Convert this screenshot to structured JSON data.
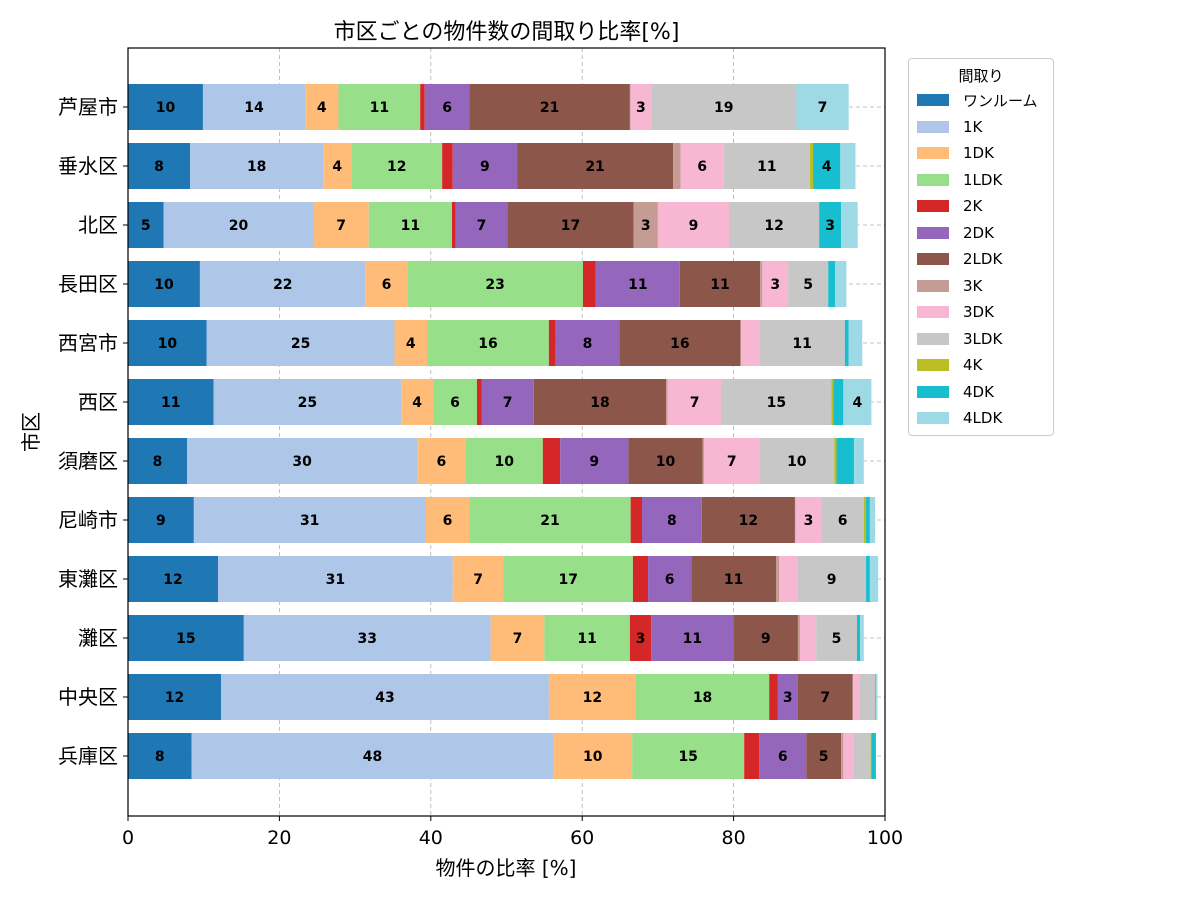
{
  "chart_data": {
    "type": "bar",
    "orientation": "horizontal",
    "stacked": true,
    "title": "市区ごとの物件数の間取り比率[%]",
    "xlabel": "物件の比率 [%]",
    "ylabel": "市区",
    "xlim": [
      0,
      100
    ],
    "xticks": [
      "0",
      "20",
      "40",
      "60",
      "80",
      "100"
    ],
    "grid": true,
    "legend_title": "間取り",
    "legend_position": "outside-top-right",
    "categories": [
      "芦屋市",
      "垂水区",
      "北区",
      "長田区",
      "西宮市",
      "西区",
      "須磨区",
      "尼崎市",
      "東灘区",
      "灘区",
      "中央区",
      "兵庫区"
    ],
    "series": [
      {
        "name": "ワンルーム",
        "color": "#1f77b4",
        "values": [
          9.9,
          8.2,
          4.7,
          9.5,
          10.4,
          11.3,
          7.8,
          8.7,
          11.9,
          15.3,
          12.3,
          8.4
        ]
      },
      {
        "name": "1K",
        "color": "#aec7e8",
        "values": [
          13.5,
          17.6,
          19.8,
          21.9,
          24.8,
          24.8,
          30.4,
          30.6,
          31.0,
          32.6,
          43.3,
          47.8
        ]
      },
      {
        "name": "1DK",
        "color": "#ffbb78",
        "values": [
          4.4,
          3.7,
          7.3,
          5.5,
          4.3,
          4.2,
          6.4,
          5.8,
          6.7,
          7.1,
          11.5,
          10.4
        ]
      },
      {
        "name": "1LDK",
        "color": "#98df8a",
        "values": [
          10.8,
          12.0,
          11.0,
          23.2,
          16.1,
          5.8,
          10.2,
          21.3,
          17.1,
          11.3,
          17.6,
          14.8
        ]
      },
      {
        "name": "2K",
        "color": "#d62728",
        "values": [
          0.6,
          1.4,
          0.5,
          1.7,
          0.9,
          0.6,
          2.3,
          1.5,
          2.0,
          2.8,
          1.1,
          2.0
        ]
      },
      {
        "name": "2DK",
        "color": "#9467bd",
        "values": [
          5.9,
          8.5,
          6.8,
          11.1,
          8.4,
          6.9,
          9.0,
          7.9,
          5.7,
          10.9,
          2.7,
          6.2
        ]
      },
      {
        "name": "2LDK",
        "color": "#8c564b",
        "values": [
          21.2,
          20.6,
          16.7,
          10.6,
          16.0,
          17.5,
          9.8,
          12.3,
          11.2,
          8.5,
          7.2,
          4.6
        ]
      },
      {
        "name": "3K",
        "color": "#c49c94",
        "values": [
          0.1,
          1.0,
          3.2,
          0.3,
          0.1,
          0.2,
          0.2,
          0.1,
          0.4,
          0.3,
          0.1,
          0.3
        ]
      },
      {
        "name": "3DK",
        "color": "#f7b6d2",
        "values": [
          2.7,
          5.7,
          9.4,
          3.4,
          2.4,
          7.1,
          7.3,
          3.4,
          2.4,
          2.1,
          0.9,
          1.3
        ]
      },
      {
        "name": "3LDK",
        "color": "#c7c7c7",
        "values": [
          19.2,
          11.4,
          11.9,
          5.3,
          11.3,
          14.5,
          9.9,
          5.6,
          9.1,
          5.4,
          2.0,
          2.3
        ]
      },
      {
        "name": "4K",
        "color": "#bcbd22",
        "values": [
          0.0,
          0.4,
          0.0,
          0.0,
          0.0,
          0.3,
          0.3,
          0.3,
          0.0,
          0.0,
          0.0,
          0.1
        ]
      },
      {
        "name": "4DK",
        "color": "#17becf",
        "values": [
          0.0,
          3.6,
          2.9,
          0.9,
          0.5,
          1.3,
          2.3,
          0.5,
          0.5,
          0.4,
          0.1,
          0.6
        ]
      },
      {
        "name": "4LDK",
        "color": "#9edae5",
        "values": [
          6.9,
          2.0,
          2.2,
          1.5,
          1.8,
          3.7,
          1.3,
          0.7,
          1.1,
          0.5,
          0.2,
          0.0
        ]
      }
    ]
  }
}
